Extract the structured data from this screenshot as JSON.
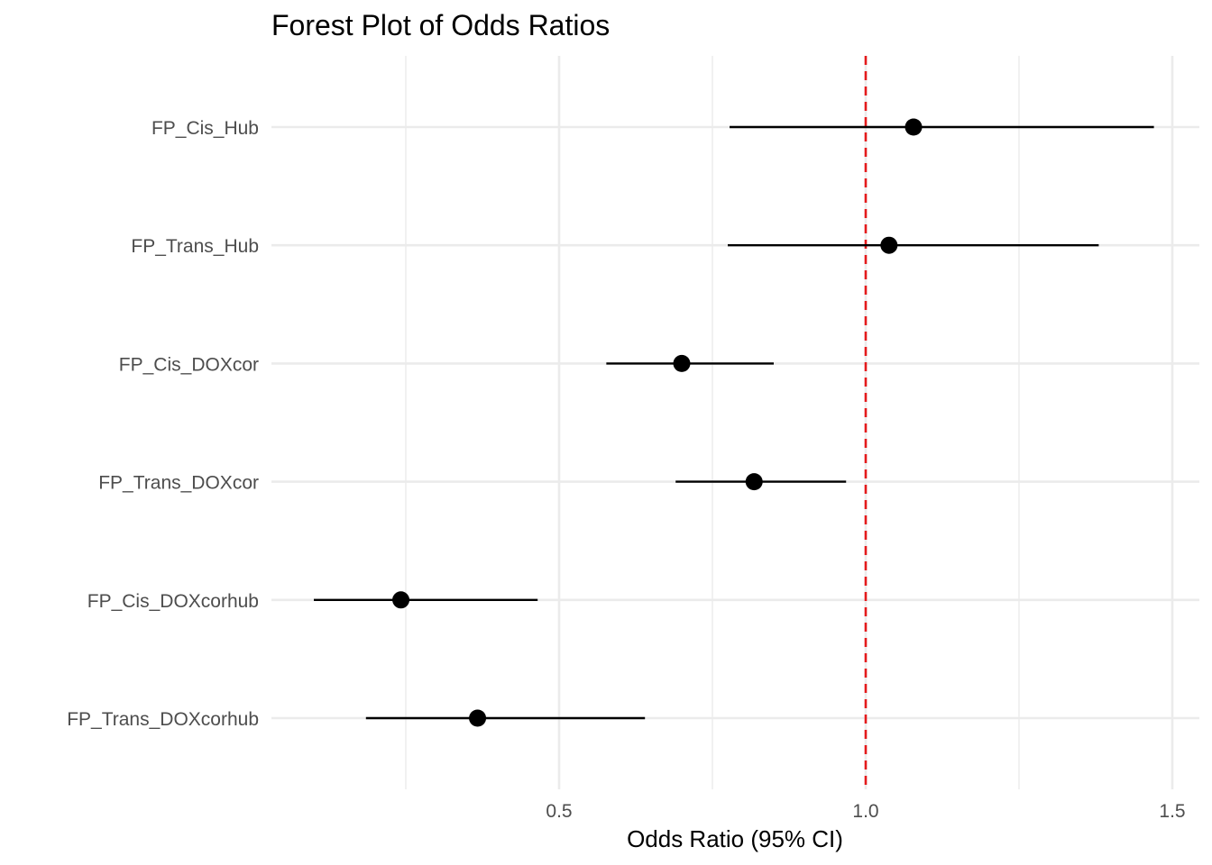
{
  "chart_data": {
    "type": "scatter",
    "subtype": "forest",
    "title": "Forest Plot of Odds Ratios",
    "xlabel": "Odds Ratio (95% CI)",
    "ylabel": "",
    "xlim": [
      0.0,
      1.53
    ],
    "x_ticks": [
      0.5,
      1.0,
      1.5
    ],
    "x_tick_labels": [
      "0.5",
      "1.0",
      "1.5"
    ],
    "x_minor_gridlines": [
      0.25,
      0.75,
      1.25
    ],
    "grid": true,
    "legend": "none",
    "reference_line": {
      "x": 1.0,
      "style": "dashed",
      "color": "#e41a1c"
    },
    "categories": [
      "FP_Cis_Hub",
      "FP_Trans_Hub",
      "FP_Cis_DOXcor",
      "FP_Trans_DOXcor",
      "FP_Cis_DOXcorhub",
      "FP_Trans_DOXcorhub"
    ],
    "series": [
      {
        "estimate": [
          1.078,
          1.038,
          0.7,
          0.818,
          0.242,
          0.367
        ],
        "ci_low": [
          0.778,
          0.775,
          0.577,
          0.69,
          0.1,
          0.185
        ],
        "ci_high": [
          1.47,
          1.38,
          0.85,
          0.968,
          0.465,
          0.64
        ]
      }
    ],
    "colors": {
      "point": "#000000",
      "ci": "#000000",
      "grid": "#ebebeb"
    }
  }
}
